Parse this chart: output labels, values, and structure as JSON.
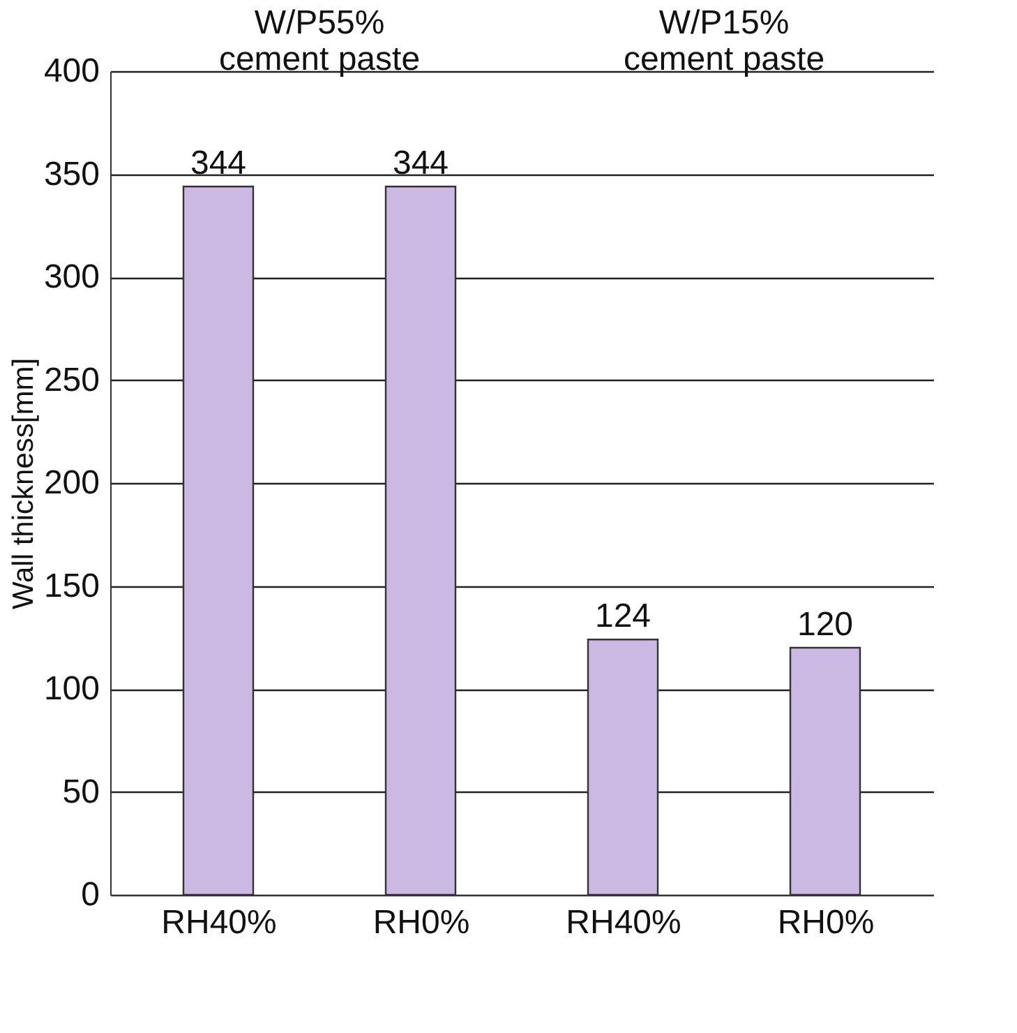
{
  "chart_data": {
    "type": "bar",
    "ylabel": "Wall thickness[mm]",
    "categories": [
      "RH40%",
      "RH0%",
      "RH40%",
      "RH0%"
    ],
    "values": [
      344,
      344,
      124,
      120
    ],
    "color": "#cbb8e3",
    "ylim": [
      0,
      400
    ],
    "yticks": [
      0,
      50,
      100,
      150,
      200,
      250,
      300,
      350,
      400
    ],
    "grid": "y",
    "data_labels": true,
    "annotations": [
      "W/P55%\ncement paste",
      "W/P15%\ncement paste"
    ]
  }
}
